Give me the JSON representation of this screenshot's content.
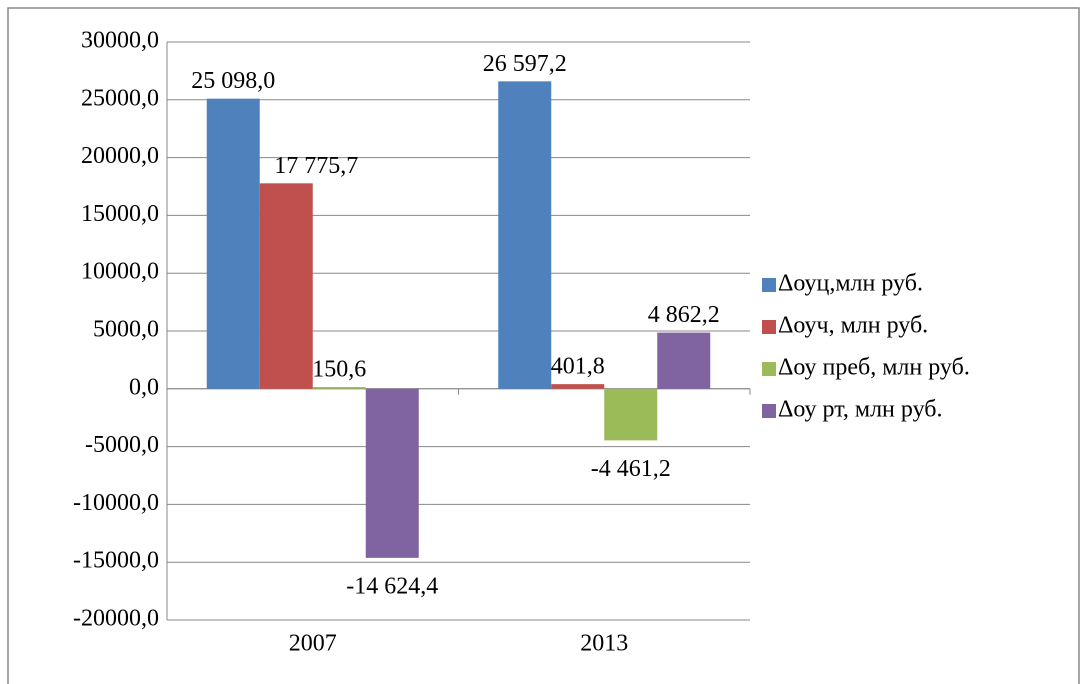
{
  "chart_data": {
    "type": "bar",
    "categories": [
      "2007",
      "2013"
    ],
    "series": [
      {
        "name": "Δоуц,млн руб.",
        "color": "#4f81bd",
        "values": [
          25098.0,
          26597.2
        ],
        "value_labels": [
          "25 098,0",
          "26 597,2"
        ]
      },
      {
        "name": "Δоуч, млн руб.",
        "color": "#c0504d",
        "values": [
          17775.7,
          401.8
        ],
        "value_labels": [
          "17 775,7",
          "401,8"
        ]
      },
      {
        "name": "Δоу преб, млн руб.",
        "color": "#9bbb59",
        "values": [
          150.6,
          -4461.2
        ],
        "value_labels": [
          "150,6",
          "-4 461,2"
        ]
      },
      {
        "name": "Δоу рт, млн руб.",
        "color": "#8064a2",
        "values": [
          -14624.4,
          4862.2
        ],
        "value_labels": [
          "-14 624,4",
          "4 862,2"
        ]
      }
    ],
    "ylim": [
      -20000,
      30000
    ],
    "yticks": [
      {
        "value": -20000,
        "label": "-20000,0"
      },
      {
        "value": -15000,
        "label": "-15000,0"
      },
      {
        "value": -10000,
        "label": "-10000,0"
      },
      {
        "value": -5000,
        "label": "-5000,0"
      },
      {
        "value": 0,
        "label": "0,0"
      },
      {
        "value": 5000,
        "label": "5000,0"
      },
      {
        "value": 10000,
        "label": "10000,0"
      },
      {
        "value": 15000,
        "label": "15000,0"
      },
      {
        "value": 20000,
        "label": "20000,0"
      },
      {
        "value": 25000,
        "label": "25000,0"
      },
      {
        "value": 30000,
        "label": "30000,0"
      }
    ],
    "grid": true,
    "legend": "right"
  }
}
